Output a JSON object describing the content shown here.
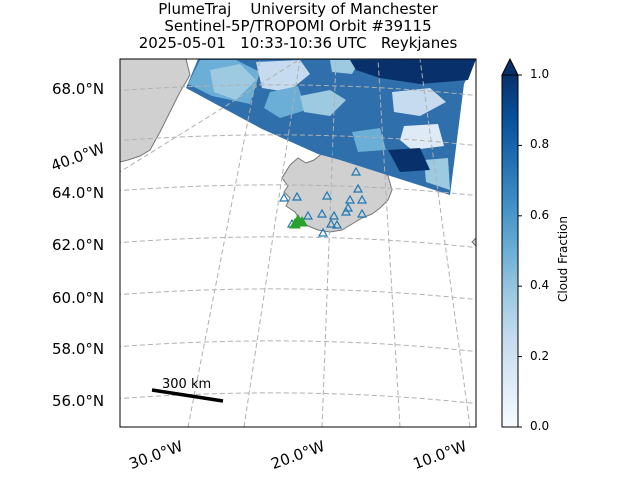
{
  "title": {
    "line1": "PlumeTraj    University of Manchester",
    "line2": "Sentinel-5P/TROPOMI Orbit #39115",
    "line3": "2025-05-01   10:33-10:36 UTC   Reykjanes"
  },
  "map": {
    "lat_labels": [
      "68.0°N",
      "64.0°N",
      "62.0°N",
      "60.0°N",
      "58.0°N",
      "56.0°N"
    ],
    "lon_labels_bottom": [
      "30.0°W",
      "20.0°W",
      "10.0°W"
    ],
    "lon_label_left": "40.0°W",
    "scale_bar": "300 km",
    "land_color": "#d0d0d0",
    "coast_color": "#777777",
    "grid_color": "#b0b0b0",
    "volcano_marker_color": "#1f77b4",
    "active_marker_color": "#2ca02c"
  },
  "colorbar": {
    "label": "Cloud Fraction",
    "ticks": [
      "0.0",
      "0.2",
      "0.4",
      "0.6",
      "0.8",
      "1.0"
    ],
    "colormap": "Blues"
  }
}
